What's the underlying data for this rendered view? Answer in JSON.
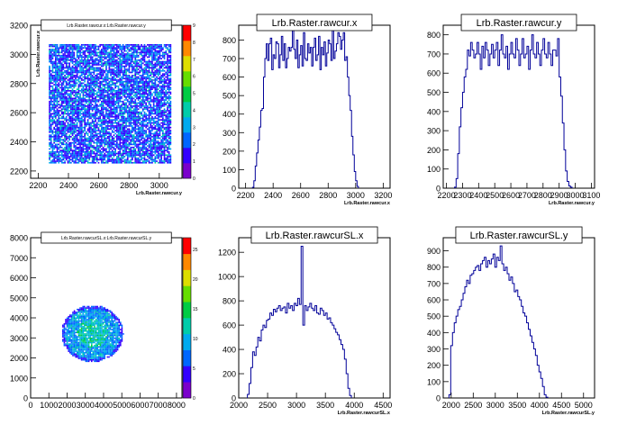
{
  "chart_data": [
    {
      "id": "p1",
      "type": "heatmap",
      "title": "Lrb.Raster.rawcur.x:Lrb.Raster.rawcur.y",
      "xlabel": "Lrb.Raster.rawcur.y",
      "ylabel": "Lrb.Raster.rawcur.x",
      "xlim": [
        2150,
        3150
      ],
      "ylim": [
        2150,
        3200
      ],
      "xticks": [
        "2200",
        "2400",
        "2600",
        "2800",
        "3000"
      ],
      "yticks": [
        "3200",
        "3000",
        "2800",
        "2600",
        "2400",
        "2200"
      ],
      "ytick_values": [
        3200,
        3000,
        2800,
        2600,
        2400,
        2200
      ],
      "region": {
        "x": [
          2270,
          3070
        ],
        "y": [
          2260,
          3070
        ]
      },
      "zlim": [
        0,
        9
      ],
      "zticks": [
        "0",
        "1",
        "2",
        "3",
        "4",
        "5",
        "6",
        "7",
        "8",
        "9"
      ],
      "palette": [
        "#7a00cc",
        "#3300ff",
        "#0066ff",
        "#00aaee",
        "#00ccaa",
        "#00cc44",
        "#66dd00",
        "#dddd00",
        "#ff8800",
        "#ff0000"
      ]
    },
    {
      "id": "p2",
      "type": "histogram",
      "title": "Lrb.Raster.rawcur.x",
      "xlabel": "Lrb.Raster.rawcur.x",
      "xlim": [
        2150,
        3250
      ],
      "ylim": [
        0,
        880
      ],
      "xticks": [
        "2200",
        "2400",
        "2600",
        "2800",
        "3000",
        "3200"
      ],
      "yticks": [
        "0",
        "100",
        "200",
        "300",
        "400",
        "500",
        "600",
        "700",
        "800"
      ],
      "line_color": "#000099",
      "bin_start": 2250,
      "bin_width": 10,
      "values": [
        5,
        40,
        120,
        190,
        260,
        330,
        420,
        430,
        600,
        700,
        780,
        690,
        780,
        810,
        640,
        720,
        700,
        790,
        780,
        650,
        720,
        820,
        690,
        780,
        650,
        700,
        760,
        740,
        760,
        870,
        750,
        700,
        800,
        650,
        720,
        770,
        660,
        840,
        700,
        690,
        780,
        730,
        760,
        660,
        760,
        810,
        690,
        720,
        820,
        640,
        760,
        720,
        790,
        660,
        730,
        800,
        780,
        690,
        870,
        700,
        740,
        780,
        840,
        820,
        750,
        800,
        840,
        690,
        710,
        600,
        500,
        420,
        280,
        180,
        90,
        40,
        10
      ]
    },
    {
      "id": "p3",
      "type": "histogram",
      "title": "Lrb.Raster.rawcur.y",
      "xlabel": "Lrb.Raster.rawcur.y",
      "xlim": [
        2180,
        3120
      ],
      "ylim": [
        0,
        850
      ],
      "xticks": [
        "2200",
        "2300",
        "2400",
        "2500",
        "2600",
        "2700",
        "2800",
        "2900",
        "3000",
        "3100"
      ],
      "yticks": [
        "0",
        "100",
        "200",
        "300",
        "400",
        "500",
        "600",
        "700",
        "800"
      ],
      "line_color": "#000099",
      "bin_start": 2250,
      "bin_width": 10,
      "values": [
        5,
        50,
        180,
        320,
        420,
        500,
        580,
        620,
        720,
        690,
        760,
        720,
        680,
        700,
        760,
        700,
        620,
        740,
        680,
        760,
        720,
        640,
        700,
        750,
        680,
        720,
        760,
        640,
        720,
        800,
        700,
        680,
        740,
        620,
        700,
        760,
        700,
        680,
        780,
        720,
        640,
        700,
        780,
        680,
        700,
        740,
        620,
        720,
        800,
        700,
        680,
        760,
        700,
        640,
        720,
        780,
        700,
        680,
        760,
        700,
        640,
        720,
        720,
        690,
        780,
        580,
        480,
        340,
        200,
        90,
        35,
        12,
        5
      ]
    },
    {
      "id": "p4",
      "type": "heatmap",
      "title": "Lrb.Raster.rawcurSL.x:Lrb.Raster.rawcurSL.y",
      "xlabel": "",
      "ylabel": "",
      "xlim": [
        0,
        8300
      ],
      "ylim": [
        0,
        8000
      ],
      "xticks": [
        "0",
        "1000",
        "2000",
        "3000",
        "4000",
        "5000",
        "6000",
        "7000",
        "8000"
      ],
      "xtick_values": [
        0,
        1000,
        2000,
        3000,
        4000,
        5000,
        6000,
        7000,
        8000
      ],
      "yticks": [
        "8000",
        "7000",
        "6000",
        "5000",
        "4000",
        "3000",
        "2000",
        "1000",
        "0"
      ],
      "ytick_values": [
        8000,
        7000,
        6000,
        5000,
        4000,
        3000,
        2000,
        1000,
        0
      ],
      "ellipse": {
        "cx": 3350,
        "cy": 3250,
        "rx": 1700,
        "ry": 1420
      },
      "zlim": [
        0,
        27
      ],
      "zticks": [
        "0",
        "5",
        "10",
        "15",
        "20",
        "25"
      ],
      "ztick_values": [
        0,
        5,
        10,
        15,
        20,
        25
      ],
      "palette": [
        "#7a00cc",
        "#3300ff",
        "#0066ff",
        "#00aaee",
        "#00ccaa",
        "#00cc44",
        "#66dd00",
        "#dddd00",
        "#ff8800",
        "#ff0000"
      ]
    },
    {
      "id": "p5",
      "type": "histogram",
      "title": "Lrb.Raster.rawcurSL.x",
      "xlabel": "Lrb.Raster.rawcurSL.x",
      "xlim": [
        2000,
        4620
      ],
      "ylim": [
        0,
        1320
      ],
      "xticks": [
        "2000",
        "2500",
        "3000",
        "3500",
        "4000",
        "4500"
      ],
      "yticks": [
        "0",
        "200",
        "400",
        "600",
        "800",
        "1000",
        "1200"
      ],
      "line_color": "#000099",
      "bin_start": 2150,
      "bin_width": 30,
      "values": [
        30,
        120,
        250,
        380,
        350,
        420,
        500,
        470,
        560,
        600,
        580,
        640,
        650,
        700,
        680,
        730,
        710,
        740,
        760,
        720,
        740,
        750,
        700,
        780,
        740,
        760,
        720,
        780,
        760,
        820,
        770,
        1250,
        600,
        760,
        720,
        750,
        780,
        740,
        720,
        760,
        700,
        690,
        740,
        720,
        680,
        700,
        650,
        660,
        620,
        600,
        570,
        540,
        520,
        480,
        440,
        400,
        320,
        200,
        80,
        20
      ]
    },
    {
      "id": "p6",
      "type": "histogram",
      "title": "Lrb.Raster.rawcurSL.y",
      "xlabel": "Lrb.Raster.rawcurSL.y",
      "xlim": [
        1820,
        5250
      ],
      "ylim": [
        0,
        980
      ],
      "xticks": [
        "2000",
        "2500",
        "3000",
        "3500",
        "4000",
        "4500",
        "5000"
      ],
      "yticks": [
        "0",
        "100",
        "200",
        "300",
        "400",
        "500",
        "600",
        "700",
        "800",
        "900"
      ],
      "line_color": "#000099",
      "bin_start": 1950,
      "bin_width": 40,
      "values": [
        20,
        320,
        400,
        460,
        500,
        540,
        560,
        600,
        640,
        680,
        720,
        700,
        750,
        760,
        780,
        800,
        810,
        780,
        820,
        840,
        860,
        800,
        840,
        820,
        850,
        880,
        800,
        860,
        840,
        930,
        820,
        780,
        800,
        760,
        720,
        740,
        700,
        650,
        660,
        620,
        600,
        560,
        520,
        500,
        460,
        420,
        380,
        340,
        300,
        260,
        200,
        160,
        120,
        70,
        20,
        5
      ]
    }
  ]
}
